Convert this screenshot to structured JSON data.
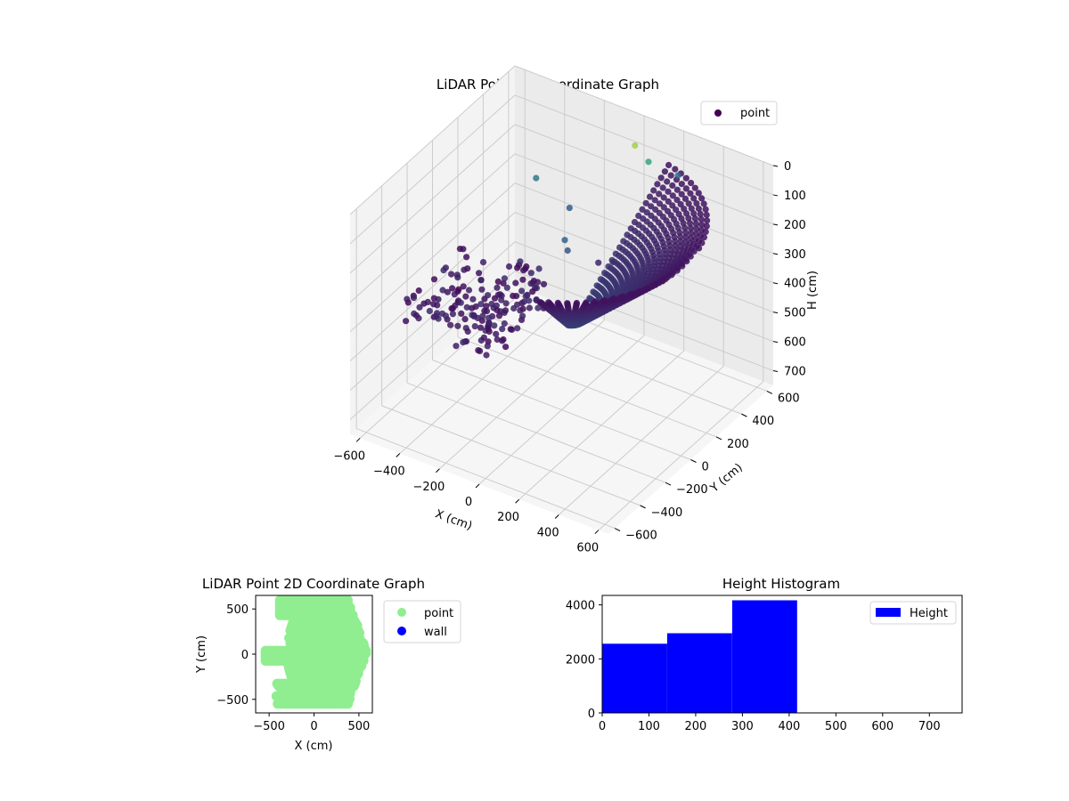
{
  "colors": {
    "cmap_dark": "#440154",
    "cmap_mid": "#31688e",
    "cmap_green": "#35b779",
    "cmap_yellow": "#fde725",
    "point_2d": "#90ee90",
    "wall_2d": "#0000ff",
    "hist_bar": "#0000ff",
    "grid": "#cccccc",
    "pane_left": "#f3f3f3",
    "pane_back": "#ebebeb",
    "pane_floor": "#f6f6f6"
  },
  "chart_data": [
    {
      "type": "scatter",
      "name": "3d",
      "title": "LiDAR Point 3D Coordinate Graph",
      "xlabel": "X (cm)",
      "ylabel": "Y (cm)",
      "zlabel": "H (cm)",
      "xlim": [
        -650,
        650
      ],
      "ylim": [
        -650,
        650
      ],
      "zlim": [
        750,
        0
      ],
      "xticks": [
        -600,
        -400,
        -200,
        0,
        200,
        400,
        600
      ],
      "yticks": [
        -600,
        -400,
        -200,
        0,
        200,
        400,
        600
      ],
      "zticks": [
        0,
        100,
        200,
        300,
        400,
        500,
        600,
        700
      ],
      "grid": true,
      "legend": {
        "position": "top-right",
        "entries": [
          "point"
        ]
      },
      "series": [
        {
          "name": "point",
          "points": [
            {
              "x": 50,
              "y": 500,
              "h": 30
            },
            {
              "x": 150,
              "y": 450,
              "h": 40
            },
            {
              "x": 330,
              "y": 400,
              "h": 20
            },
            {
              "x": -320,
              "y": 300,
              "h": 160
            },
            {
              "x": -120,
              "y": 250,
              "h": 190
            },
            {
              "x": -80,
              "y": 150,
              "h": 250
            },
            {
              "x": -40,
              "y": 110,
              "h": 260
            },
            {
              "x": 70,
              "y": 180,
              "h": 300
            },
            {
              "x": 130,
              "y": 200,
              "h": 290
            }
          ],
          "dome_cloud": {
            "x_range": [
              -100,
              600
            ],
            "y_range": [
              -550,
              600
            ],
            "h_range": [
              0,
              420
            ]
          },
          "cluster_cloud": {
            "x_range": [
              -500,
              -50
            ],
            "y_range": [
              -500,
              50
            ],
            "h_range": [
              300,
              420
            ]
          }
        }
      ]
    },
    {
      "type": "scatter",
      "name": "2d",
      "title": "LiDAR Point 2D Coordinate Graph",
      "xlabel": "X (cm)",
      "ylabel": "Y (cm)",
      "xlim": [
        -650,
        650
      ],
      "ylim": [
        -650,
        650
      ],
      "xticks": [
        -500,
        0,
        500
      ],
      "yticks": [
        -500,
        0,
        500
      ],
      "legend": {
        "position": "outside-right",
        "entries": [
          "point",
          "wall"
        ]
      },
      "series": [
        {
          "name": "point",
          "region": "dome footprint with ragged left edge",
          "x_range": [
            -540,
            590
          ],
          "y_range": [
            -550,
            600
          ]
        },
        {
          "name": "wall",
          "values": []
        }
      ]
    },
    {
      "type": "bar",
      "name": "histogram",
      "title": "Height Histogram",
      "xlabel": "",
      "ylabel": "",
      "xlim": [
        0,
        770
      ],
      "ylim": [
        0,
        4350
      ],
      "xticks": [
        0,
        100,
        200,
        300,
        400,
        500,
        600,
        700
      ],
      "yticks": [
        0,
        2000,
        4000
      ],
      "legend": {
        "position": "top-right",
        "entries": [
          "Height"
        ]
      },
      "bins": [
        {
          "x0": 0,
          "x1": 139,
          "count": 2560
        },
        {
          "x0": 139,
          "x1": 278,
          "count": 2950
        },
        {
          "x0": 278,
          "x1": 417,
          "count": 4170
        }
      ]
    }
  ]
}
